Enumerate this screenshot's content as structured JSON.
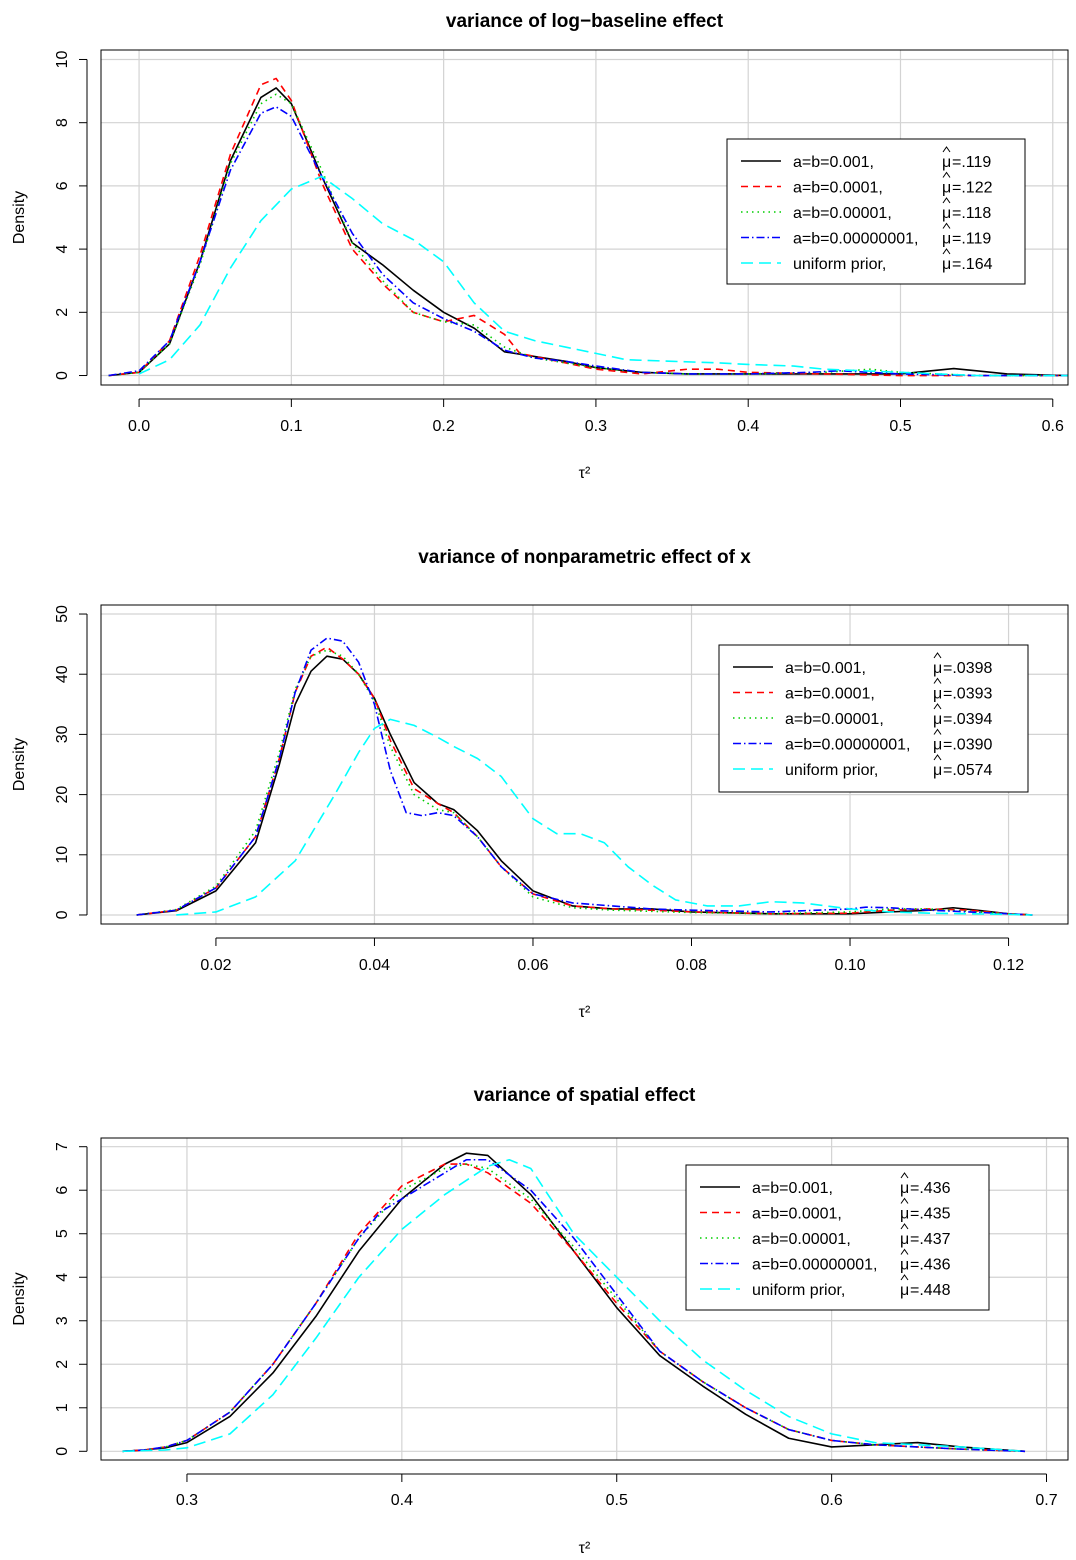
{
  "chart_data": [
    {
      "type": "line",
      "title": "variance of log−baseline effect",
      "xlabel": "τ²",
      "ylabel": "Density",
      "xlim": [
        -0.025,
        0.61
      ],
      "ylim": [
        -0.3,
        10.3
      ],
      "xticks": [
        0.0,
        0.1,
        0.2,
        0.3,
        0.4,
        0.5,
        0.6
      ],
      "xtick_labels": [
        "0.0",
        "0.1",
        "0.2",
        "0.3",
        "0.4",
        "0.5",
        "0.6"
      ],
      "yticks": [
        0,
        2,
        4,
        6,
        8,
        10
      ],
      "ytick_labels": [
        "0",
        "2",
        "4",
        "6",
        "8",
        "10"
      ],
      "grid": true,
      "legend": {
        "position": "right",
        "entries": [
          "a=b=0.001,",
          "a=b=0.0001,",
          "a=b=0.00001,",
          "a=b=0.00000001,",
          "uniform prior,"
        ],
        "mu_values": [
          "=.119",
          "=.122",
          "=.118",
          "=.119",
          "=.164"
        ]
      },
      "series": [
        {
          "name": "a=b=0.001,",
          "color": "#000000",
          "dash": "",
          "x": [
            -0.02,
            0.0,
            0.02,
            0.04,
            0.06,
            0.08,
            0.09,
            0.1,
            0.12,
            0.14,
            0.16,
            0.18,
            0.2,
            0.22,
            0.24,
            0.26,
            0.28,
            0.3,
            0.33,
            0.36,
            0.4,
            0.45,
            0.5,
            0.52,
            0.535,
            0.55,
            0.57,
            0.61
          ],
          "y": [
            0.0,
            0.1,
            1.0,
            3.6,
            6.8,
            8.8,
            9.1,
            8.6,
            6.3,
            4.2,
            3.5,
            2.7,
            2.0,
            1.5,
            0.75,
            0.6,
            0.45,
            0.25,
            0.1,
            0.05,
            0.05,
            0.05,
            0.05,
            0.15,
            0.22,
            0.15,
            0.05,
            0.0
          ]
        },
        {
          "name": "a=b=0.0001,",
          "color": "#ff0000",
          "dash": "7,5",
          "x": [
            -0.02,
            0.0,
            0.02,
            0.04,
            0.06,
            0.08,
            0.09,
            0.1,
            0.12,
            0.14,
            0.16,
            0.18,
            0.2,
            0.22,
            0.24,
            0.25,
            0.28,
            0.3,
            0.33,
            0.36,
            0.38,
            0.4,
            0.45,
            0.5,
            0.55,
            0.61
          ],
          "y": [
            0.0,
            0.1,
            1.1,
            3.8,
            7.0,
            9.2,
            9.4,
            8.7,
            6.1,
            4.0,
            2.9,
            2.0,
            1.7,
            1.9,
            1.3,
            0.7,
            0.4,
            0.2,
            0.05,
            0.2,
            0.2,
            0.1,
            0.05,
            0.0,
            0.0,
            0.0
          ]
        },
        {
          "name": "a=b=0.00001,",
          "color": "#00cd00",
          "dash": "1.5,4",
          "x": [
            -0.02,
            0.0,
            0.02,
            0.04,
            0.06,
            0.08,
            0.09,
            0.1,
            0.12,
            0.14,
            0.16,
            0.18,
            0.2,
            0.22,
            0.24,
            0.26,
            0.28,
            0.3,
            0.33,
            0.36,
            0.4,
            0.45,
            0.48,
            0.5,
            0.55,
            0.61
          ],
          "y": [
            0.0,
            0.1,
            1.0,
            3.5,
            6.7,
            8.6,
            8.9,
            8.6,
            6.5,
            4.2,
            3.0,
            2.0,
            1.7,
            1.6,
            0.9,
            0.55,
            0.4,
            0.25,
            0.1,
            0.05,
            0.05,
            0.1,
            0.2,
            0.1,
            0.0,
            0.0
          ]
        },
        {
          "name": "a=b=0.00000001,",
          "color": "#0000ff",
          "dash": "8,3,1.5,3",
          "x": [
            -0.02,
            0.0,
            0.02,
            0.04,
            0.06,
            0.08,
            0.09,
            0.1,
            0.12,
            0.14,
            0.16,
            0.18,
            0.2,
            0.22,
            0.24,
            0.26,
            0.28,
            0.3,
            0.33,
            0.36,
            0.4,
            0.44,
            0.46,
            0.5,
            0.55,
            0.61
          ],
          "y": [
            0.0,
            0.15,
            1.1,
            3.6,
            6.5,
            8.3,
            8.5,
            8.2,
            6.3,
            4.5,
            3.2,
            2.3,
            1.8,
            1.4,
            0.8,
            0.55,
            0.45,
            0.3,
            0.1,
            0.05,
            0.05,
            0.1,
            0.15,
            0.05,
            0.0,
            0.0
          ]
        },
        {
          "name": "uniform prior,",
          "color": "#00ffff",
          "dash": "12,6",
          "x": [
            0.0,
            0.02,
            0.04,
            0.06,
            0.08,
            0.1,
            0.12,
            0.14,
            0.16,
            0.18,
            0.2,
            0.22,
            0.24,
            0.26,
            0.28,
            0.3,
            0.32,
            0.35,
            0.38,
            0.4,
            0.43,
            0.45,
            0.5,
            0.55,
            0.61
          ],
          "y": [
            0.05,
            0.5,
            1.6,
            3.4,
            4.9,
            5.9,
            6.3,
            5.6,
            4.8,
            4.3,
            3.6,
            2.3,
            1.4,
            1.1,
            0.9,
            0.7,
            0.5,
            0.45,
            0.4,
            0.35,
            0.3,
            0.2,
            0.1,
            0.0,
            0.0
          ]
        }
      ]
    },
    {
      "type": "line",
      "title": "variance of nonparametric effect of x",
      "xlabel": "τ²",
      "ylabel": "Density",
      "xlim": [
        0.0055,
        0.1275
      ],
      "ylim": [
        -1.5,
        51.5
      ],
      "xticks": [
        0.02,
        0.04,
        0.06,
        0.08,
        0.1,
        0.12
      ],
      "xtick_labels": [
        "0.02",
        "0.04",
        "0.06",
        "0.08",
        "0.10",
        "0.12"
      ],
      "yticks": [
        0,
        10,
        20,
        30,
        40,
        50
      ],
      "ytick_labels": [
        "0",
        "10",
        "20",
        "30",
        "40",
        "50"
      ],
      "grid": true,
      "legend": {
        "position": "right",
        "entries": [
          "a=b=0.001,",
          "a=b=0.0001,",
          "a=b=0.00001,",
          "a=b=0.00000001,",
          "uniform prior,"
        ],
        "mu_values": [
          "=.0398",
          "=.0393",
          "=.0394",
          "=.0390",
          "=.0574"
        ]
      },
      "series": [
        {
          "name": "a=b=0.001,",
          "color": "#000000",
          "dash": "",
          "x": [
            0.01,
            0.015,
            0.02,
            0.025,
            0.028,
            0.03,
            0.032,
            0.034,
            0.036,
            0.038,
            0.04,
            0.042,
            0.045,
            0.048,
            0.05,
            0.053,
            0.056,
            0.06,
            0.065,
            0.07,
            0.075,
            0.08,
            0.09,
            0.1,
            0.11,
            0.113,
            0.116,
            0.12,
            0.123
          ],
          "y": [
            0.0,
            0.7,
            4.0,
            12.0,
            25.0,
            35.0,
            40.5,
            43.0,
            42.5,
            40.0,
            36.0,
            30.0,
            22.0,
            18.5,
            17.5,
            14.0,
            9.0,
            4.0,
            1.5,
            1.0,
            1.0,
            0.5,
            0.2,
            0.2,
            0.8,
            1.2,
            0.8,
            0.2,
            0.0
          ]
        },
        {
          "name": "a=b=0.0001,",
          "color": "#ff0000",
          "dash": "7,5",
          "x": [
            0.01,
            0.015,
            0.02,
            0.025,
            0.028,
            0.03,
            0.032,
            0.034,
            0.036,
            0.038,
            0.04,
            0.042,
            0.045,
            0.048,
            0.05,
            0.053,
            0.056,
            0.06,
            0.065,
            0.07,
            0.075,
            0.08,
            0.09,
            0.1,
            0.105,
            0.11,
            0.115,
            0.12,
            0.123
          ],
          "y": [
            0.0,
            0.8,
            4.5,
            13.0,
            26.0,
            37.0,
            43.0,
            44.5,
            42.5,
            40.0,
            36.0,
            29.0,
            21.0,
            18.5,
            17.0,
            13.0,
            8.0,
            3.5,
            1.5,
            1.0,
            0.8,
            0.5,
            0.2,
            0.3,
            0.8,
            1.0,
            0.8,
            0.2,
            0.0
          ]
        },
        {
          "name": "a=b=0.00001,",
          "color": "#00cd00",
          "dash": "1.5,4",
          "x": [
            0.01,
            0.015,
            0.02,
            0.025,
            0.028,
            0.03,
            0.032,
            0.034,
            0.036,
            0.038,
            0.04,
            0.042,
            0.045,
            0.048,
            0.05,
            0.053,
            0.056,
            0.06,
            0.065,
            0.07,
            0.075,
            0.08,
            0.09,
            0.1,
            0.105,
            0.11,
            0.115,
            0.12,
            0.123
          ],
          "y": [
            0.0,
            0.9,
            4.8,
            14.0,
            27.0,
            37.5,
            43.0,
            44.0,
            43.0,
            40.0,
            35.5,
            28.0,
            20.0,
            17.5,
            17.0,
            13.0,
            8.0,
            3.0,
            1.2,
            0.8,
            0.6,
            0.4,
            0.2,
            0.5,
            1.0,
            1.0,
            0.6,
            0.2,
            0.0
          ]
        },
        {
          "name": "a=b=0.00000001,",
          "color": "#0000ff",
          "dash": "8,3,1.5,3",
          "x": [
            0.01,
            0.015,
            0.02,
            0.025,
            0.028,
            0.03,
            0.032,
            0.034,
            0.036,
            0.038,
            0.04,
            0.042,
            0.044,
            0.046,
            0.048,
            0.05,
            0.053,
            0.056,
            0.06,
            0.065,
            0.07,
            0.075,
            0.08,
            0.09,
            0.1,
            0.102,
            0.105,
            0.11,
            0.115,
            0.12,
            0.123
          ],
          "y": [
            0.0,
            0.8,
            4.5,
            13.0,
            26.0,
            37.0,
            44.0,
            46.0,
            45.5,
            42.0,
            35.0,
            24.0,
            17.0,
            16.5,
            17.0,
            16.5,
            13.0,
            8.0,
            3.5,
            2.0,
            1.5,
            1.0,
            0.8,
            0.5,
            1.0,
            1.3,
            1.2,
            0.8,
            0.5,
            0.2,
            0.0
          ]
        },
        {
          "name": "uniform prior,",
          "color": "#00ffff",
          "dash": "12,6",
          "x": [
            0.015,
            0.02,
            0.025,
            0.03,
            0.035,
            0.038,
            0.04,
            0.042,
            0.045,
            0.048,
            0.05,
            0.053,
            0.056,
            0.06,
            0.063,
            0.066,
            0.069,
            0.072,
            0.075,
            0.078,
            0.082,
            0.086,
            0.09,
            0.094,
            0.1,
            0.105,
            0.11,
            0.115,
            0.12,
            0.123
          ],
          "y": [
            0.0,
            0.5,
            3.0,
            9.0,
            20.0,
            27.0,
            31.0,
            32.5,
            31.5,
            29.5,
            28.0,
            26.0,
            23.0,
            16.0,
            13.5,
            13.5,
            12.0,
            8.0,
            5.0,
            2.5,
            1.5,
            1.5,
            2.2,
            2.0,
            1.0,
            0.5,
            0.3,
            0.2,
            0.1,
            0.0
          ]
        }
      ]
    },
    {
      "type": "line",
      "title": "variance of spatial effect",
      "xlabel": "τ²",
      "ylabel": "Density",
      "xlim": [
        0.26,
        0.71
      ],
      "ylim": [
        -0.2,
        7.2
      ],
      "xticks": [
        0.3,
        0.4,
        0.5,
        0.6,
        0.7
      ],
      "xtick_labels": [
        "0.3",
        "0.4",
        "0.5",
        "0.6",
        "0.7"
      ],
      "yticks": [
        0,
        1,
        2,
        3,
        4,
        5,
        6,
        7
      ],
      "ytick_labels": [
        "0",
        "1",
        "2",
        "3",
        "4",
        "5",
        "6",
        "7"
      ],
      "grid": true,
      "legend": {
        "position": "right",
        "entries": [
          "a=b=0.001,",
          "a=b=0.0001,",
          "a=b=0.00001,",
          "a=b=0.00000001,",
          "uniform prior,"
        ],
        "mu_values": [
          "=.436",
          "=.435",
          "=.437",
          "=.436",
          "=.448"
        ]
      },
      "series": [
        {
          "name": "a=b=0.001,",
          "color": "#000000",
          "dash": "",
          "x": [
            0.27,
            0.28,
            0.29,
            0.3,
            0.32,
            0.34,
            0.36,
            0.38,
            0.4,
            0.42,
            0.43,
            0.44,
            0.46,
            0.48,
            0.5,
            0.52,
            0.54,
            0.56,
            0.58,
            0.6,
            0.62,
            0.64,
            0.66,
            0.69
          ],
          "y": [
            0.0,
            0.03,
            0.08,
            0.2,
            0.8,
            1.8,
            3.1,
            4.6,
            5.8,
            6.6,
            6.85,
            6.8,
            5.9,
            4.6,
            3.3,
            2.2,
            1.5,
            0.85,
            0.3,
            0.1,
            0.15,
            0.2,
            0.1,
            0.0
          ]
        },
        {
          "name": "a=b=0.0001,",
          "color": "#ff0000",
          "dash": "7,5",
          "x": [
            0.27,
            0.28,
            0.29,
            0.3,
            0.32,
            0.34,
            0.36,
            0.38,
            0.4,
            0.42,
            0.43,
            0.44,
            0.46,
            0.48,
            0.5,
            0.52,
            0.54,
            0.56,
            0.58,
            0.6,
            0.62,
            0.64,
            0.66,
            0.69
          ],
          "y": [
            0.0,
            0.03,
            0.1,
            0.25,
            0.9,
            2.0,
            3.4,
            5.0,
            6.1,
            6.6,
            6.6,
            6.4,
            5.7,
            4.6,
            3.4,
            2.3,
            1.6,
            1.0,
            0.5,
            0.25,
            0.15,
            0.1,
            0.05,
            0.0
          ]
        },
        {
          "name": "a=b=0.00001,",
          "color": "#00cd00",
          "dash": "1.5,4",
          "x": [
            0.27,
            0.28,
            0.29,
            0.3,
            0.32,
            0.34,
            0.36,
            0.38,
            0.4,
            0.42,
            0.43,
            0.44,
            0.46,
            0.48,
            0.5,
            0.52,
            0.54,
            0.56,
            0.58,
            0.6,
            0.62,
            0.64,
            0.66,
            0.69
          ],
          "y": [
            0.0,
            0.03,
            0.1,
            0.25,
            0.9,
            2.0,
            3.4,
            4.9,
            6.0,
            6.5,
            6.6,
            6.5,
            5.8,
            4.7,
            3.5,
            2.3,
            1.6,
            1.0,
            0.5,
            0.25,
            0.15,
            0.1,
            0.05,
            0.0
          ]
        },
        {
          "name": "a=b=0.00000001,",
          "color": "#0000ff",
          "dash": "8,3,1.5,3",
          "x": [
            0.27,
            0.28,
            0.29,
            0.3,
            0.32,
            0.34,
            0.36,
            0.38,
            0.39,
            0.4,
            0.42,
            0.43,
            0.44,
            0.46,
            0.48,
            0.5,
            0.52,
            0.54,
            0.56,
            0.58,
            0.6,
            0.62,
            0.64,
            0.66,
            0.69
          ],
          "y": [
            0.0,
            0.03,
            0.1,
            0.25,
            0.9,
            2.0,
            3.4,
            4.9,
            5.5,
            5.8,
            6.4,
            6.7,
            6.7,
            6.0,
            4.9,
            3.6,
            2.3,
            1.6,
            1.0,
            0.5,
            0.25,
            0.15,
            0.1,
            0.05,
            0.0
          ]
        },
        {
          "name": "uniform prior,",
          "color": "#00ffff",
          "dash": "12,6",
          "x": [
            0.27,
            0.29,
            0.3,
            0.32,
            0.34,
            0.36,
            0.38,
            0.4,
            0.42,
            0.44,
            0.45,
            0.46,
            0.48,
            0.5,
            0.52,
            0.54,
            0.56,
            0.58,
            0.6,
            0.62,
            0.64,
            0.66,
            0.69
          ],
          "y": [
            0.0,
            0.03,
            0.08,
            0.4,
            1.3,
            2.6,
            4.0,
            5.1,
            5.9,
            6.55,
            6.7,
            6.5,
            5.0,
            4.0,
            3.0,
            2.1,
            1.4,
            0.8,
            0.4,
            0.2,
            0.15,
            0.1,
            0.0
          ]
        }
      ]
    }
  ]
}
